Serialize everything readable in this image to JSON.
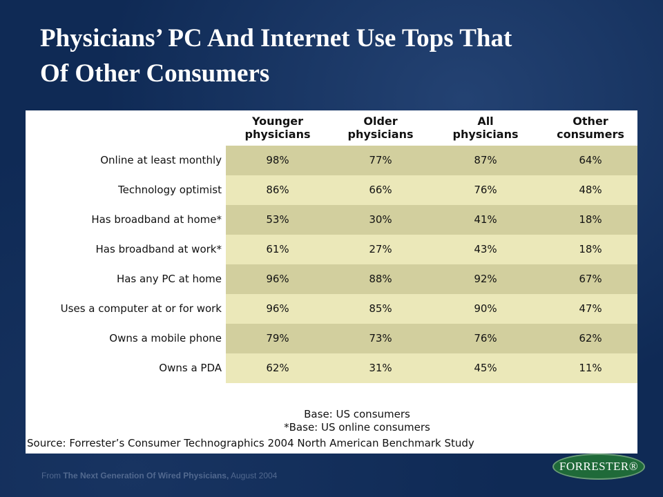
{
  "slide": {
    "title_line1": "Physicians’ PC And Internet Use Tops That",
    "title_line2": "Of Other Consumers"
  },
  "chart_data": {
    "type": "table",
    "columns": [
      "Younger physicians",
      "Older physicians",
      "All physicians",
      "Other consumers"
    ],
    "column_header_lines": [
      [
        "Younger",
        "physicians"
      ],
      [
        "Older",
        "physicians"
      ],
      [
        "All",
        "physicians"
      ],
      [
        "Other",
        "consumers"
      ]
    ],
    "rows": [
      {
        "label": "Online at least monthly",
        "values": [
          "98%",
          "77%",
          "87%",
          "64%"
        ]
      },
      {
        "label": "Technology optimist",
        "values": [
          "86%",
          "66%",
          "76%",
          "48%"
        ]
      },
      {
        "label": "Has broadband at home*",
        "values": [
          "53%",
          "30%",
          "41%",
          "18%"
        ]
      },
      {
        "label": "Has broadband at work*",
        "values": [
          "61%",
          "27%",
          "43%",
          "18%"
        ]
      },
      {
        "label": "Has any PC at home",
        "values": [
          "96%",
          "88%",
          "92%",
          "67%"
        ]
      },
      {
        "label": "Uses a computer at or for work",
        "values": [
          "96%",
          "85%",
          "90%",
          "47%"
        ]
      },
      {
        "label": "Owns a mobile phone",
        "values": [
          "79%",
          "73%",
          "76%",
          "62%"
        ]
      },
      {
        "label": "Owns a PDA",
        "values": [
          "62%",
          "31%",
          "45%",
          "11%"
        ]
      }
    ],
    "notes": {
      "base": "Base: US consumers",
      "base_online": "*Base: US online consumers",
      "source": "Source: Forrester’s Consumer Technographics 2004 North American Benchmark Study"
    }
  },
  "colors": {
    "band_dark": "#d2cf9e",
    "band_light": "#ebe8b9",
    "background": "#0f2a55",
    "logo_green": "#1f6a39"
  },
  "footer": {
    "prefix": "From ",
    "report": "The Next Generation Of Wired Physicians,",
    "date": " August 2004"
  },
  "logo": {
    "text": "FORRESTER®"
  }
}
